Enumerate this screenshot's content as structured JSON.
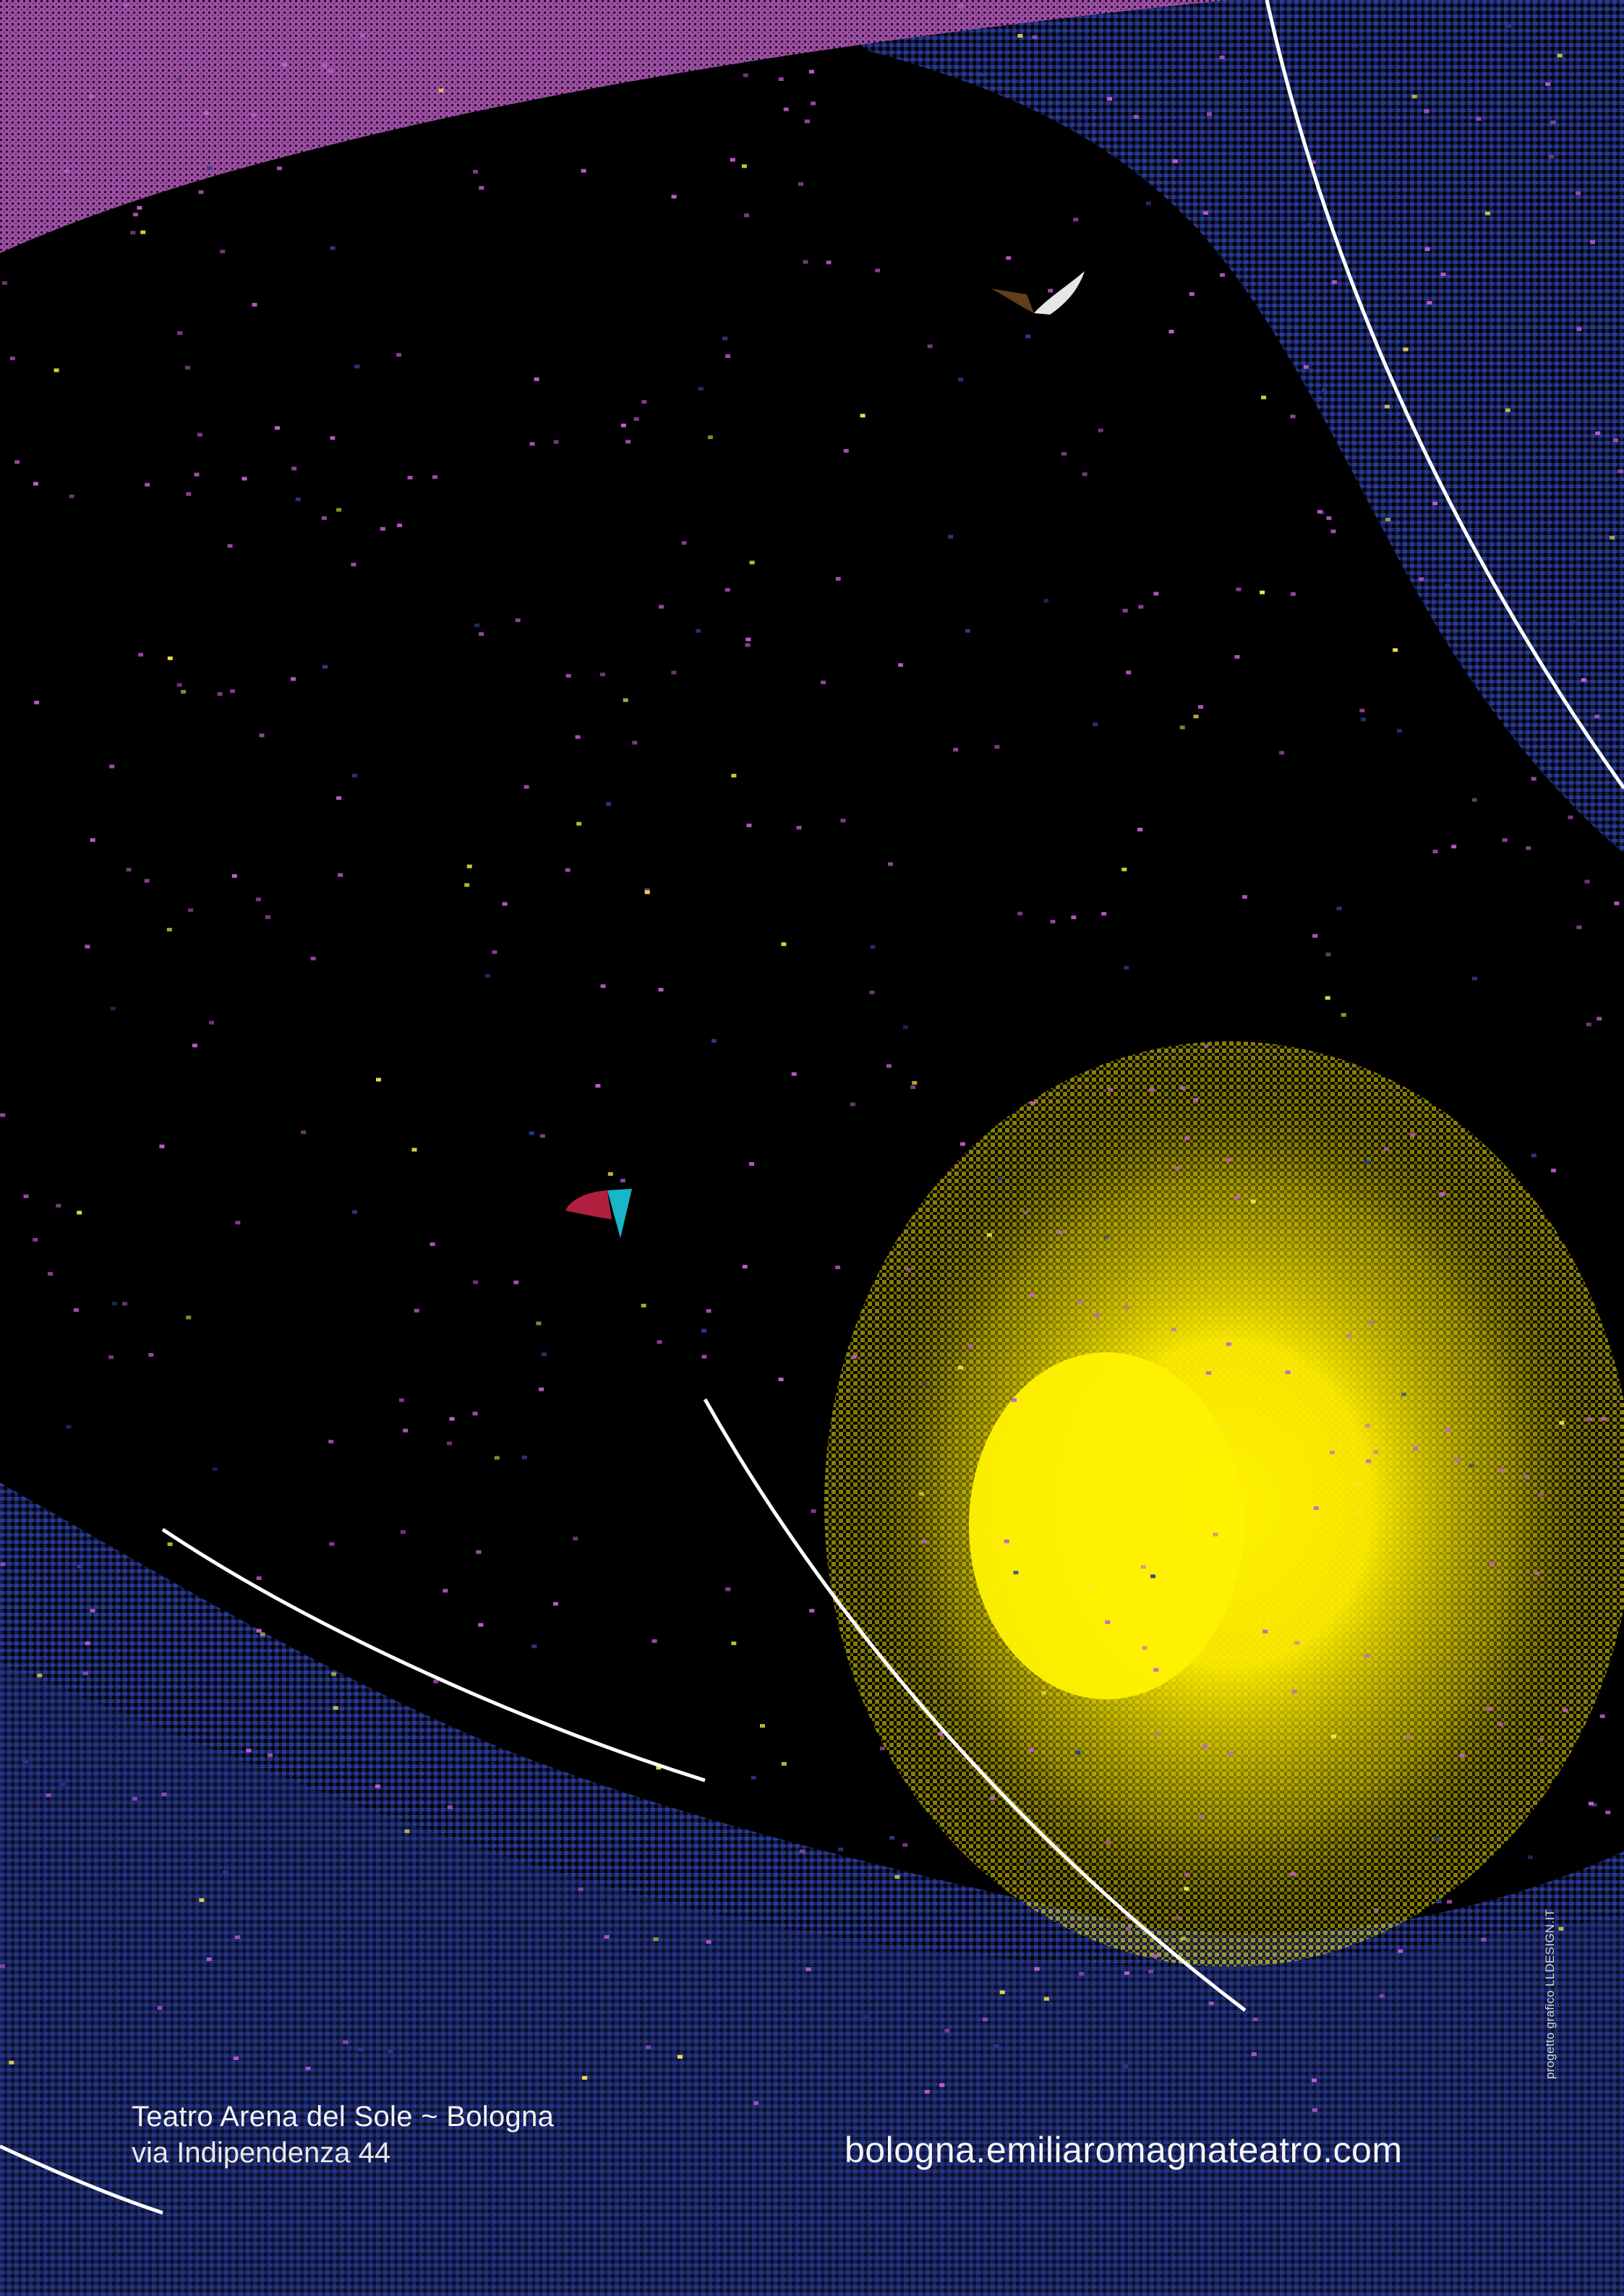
{
  "poster": {
    "colors": {
      "background": "#000000",
      "band": "#9b4fa2",
      "navy": "#1c2a6e",
      "glow": "#ffee00",
      "line": "#ffffff",
      "speck_pink": "#c45fd0",
      "speck_yellow": "#f4e84a"
    },
    "venue": {
      "name": "Teatro Arena del Sole ~ Bologna",
      "address": "via Indipendenza 44"
    },
    "website": "bologna.emiliaromagnateatro.com",
    "credit": "progetto grafico LLDESIGN.IT"
  }
}
